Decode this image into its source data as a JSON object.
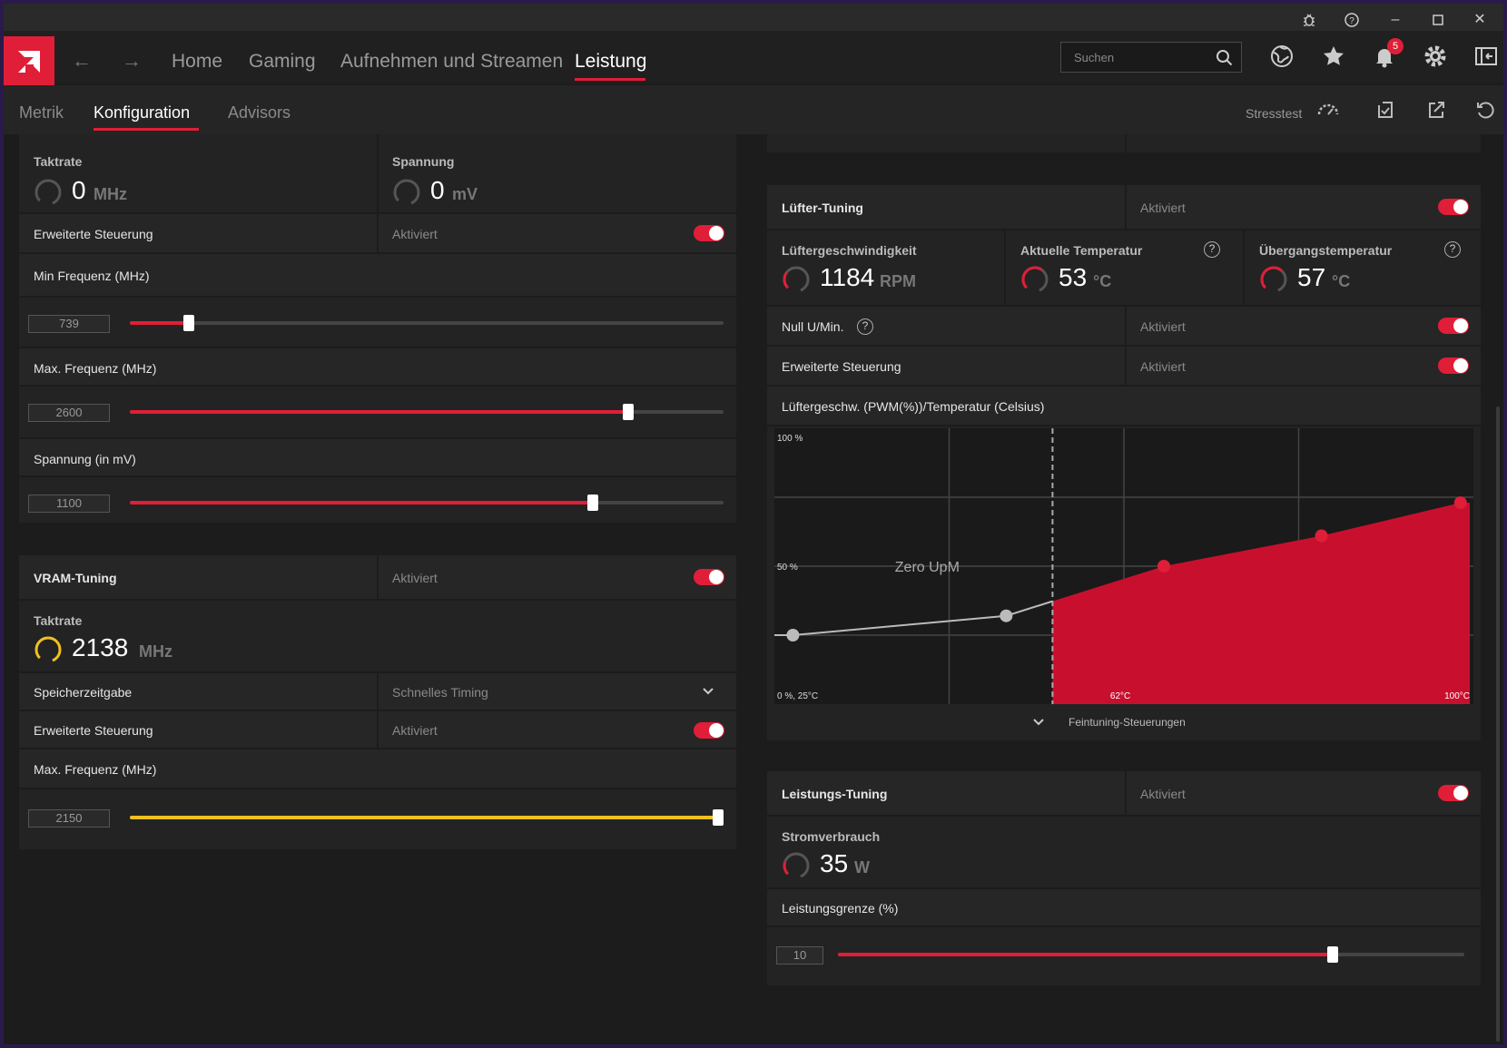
{
  "header": {
    "nav": [
      "Home",
      "Gaming",
      "Aufnehmen und Streamen",
      "Leistung"
    ],
    "active_nav": "Leistung",
    "search_placeholder": "Suchen",
    "notification_count": "5"
  },
  "subnav": {
    "tabs": [
      "Metrik",
      "Konfiguration",
      "Advisors"
    ],
    "active_tab": "Konfiguration",
    "stresstest_label": "Stresstest"
  },
  "gpu_tuning": {
    "clock_label": "Taktrate",
    "clock_value": "0",
    "clock_unit": "MHz",
    "voltage_label": "Spannung",
    "voltage_value": "0",
    "voltage_unit": "mV",
    "advanced_label": "Erweiterte Steuerung",
    "advanced_state": "Aktiviert",
    "min_freq_label": "Min Frequenz (MHz)",
    "min_freq_value": "739",
    "min_freq_fraction": 0.1,
    "max_freq_label": "Max. Frequenz (MHz)",
    "max_freq_value": "2600",
    "max_freq_fraction": 0.84,
    "voltage_slider_label": "Spannung (in mV)",
    "voltage_slider_value": "1100",
    "voltage_slider_fraction": 0.78
  },
  "vram_tuning": {
    "title": "VRAM-Tuning",
    "state": "Aktiviert",
    "clock_label": "Taktrate",
    "clock_value": "2138",
    "clock_unit": "MHz",
    "memory_timing_label": "Speicherzeitgabe",
    "memory_timing_value": "Schnelles Timing",
    "advanced_label": "Erweiterte Steuerung",
    "advanced_state": "Aktiviert",
    "max_freq_label": "Max. Frequenz (MHz)",
    "max_freq_value": "2150",
    "max_freq_fraction": 1.0
  },
  "fan_tuning": {
    "title": "Lüfter-Tuning",
    "state": "Aktiviert",
    "fan_speed_label": "Lüftergeschwindigkeit",
    "fan_speed_value": "1184",
    "fan_speed_unit": "RPM",
    "current_temp_label": "Aktuelle Temperatur",
    "current_temp_value": "53",
    "current_temp_unit": "°C",
    "junction_temp_label": "Übergangstemperatur",
    "junction_temp_value": "57",
    "junction_temp_unit": "°C",
    "zero_rpm_label": "Null U/Min.",
    "zero_rpm_state": "Aktiviert",
    "advanced_label": "Erweiterte Steuerung",
    "advanced_state": "Aktiviert",
    "curve_label": "Lüftergeschw. (PWM(%))/Temperatur (Celsius)",
    "fine_tune_label": "Feintuning-Steuerungen"
  },
  "chart_data": {
    "type": "area",
    "title": "",
    "y_top_label": "100 %",
    "y_mid_label": "50 %",
    "origin_label": "0 %, 25°C",
    "x_mid_label": "62°C",
    "x_end_label": "100°C",
    "zero_rpm_annotation": "Zero UpM",
    "xlim": [
      25,
      100
    ],
    "ylim": [
      0,
      100
    ],
    "zero_rpm_threshold_c": 55,
    "points": [
      {
        "x": 27,
        "y": 25
      },
      {
        "x": 50,
        "y": 32
      },
      {
        "x": 67,
        "y": 50
      },
      {
        "x": 84,
        "y": 61
      },
      {
        "x": 99,
        "y": 73
      }
    ],
    "active_color": "#c8102e",
    "inactive_color": "#bbbbbb"
  },
  "power_tuning": {
    "title": "Leistungs-Tuning",
    "state": "Aktiviert",
    "consumption_label": "Stromverbrauch",
    "consumption_value": "35",
    "consumption_unit": "W",
    "limit_label": "Leistungsgrenze (%)",
    "limit_value": "10",
    "limit_fraction": 0.79
  },
  "colors": {
    "accent": "#e01e37",
    "vram": "#f0c020"
  }
}
